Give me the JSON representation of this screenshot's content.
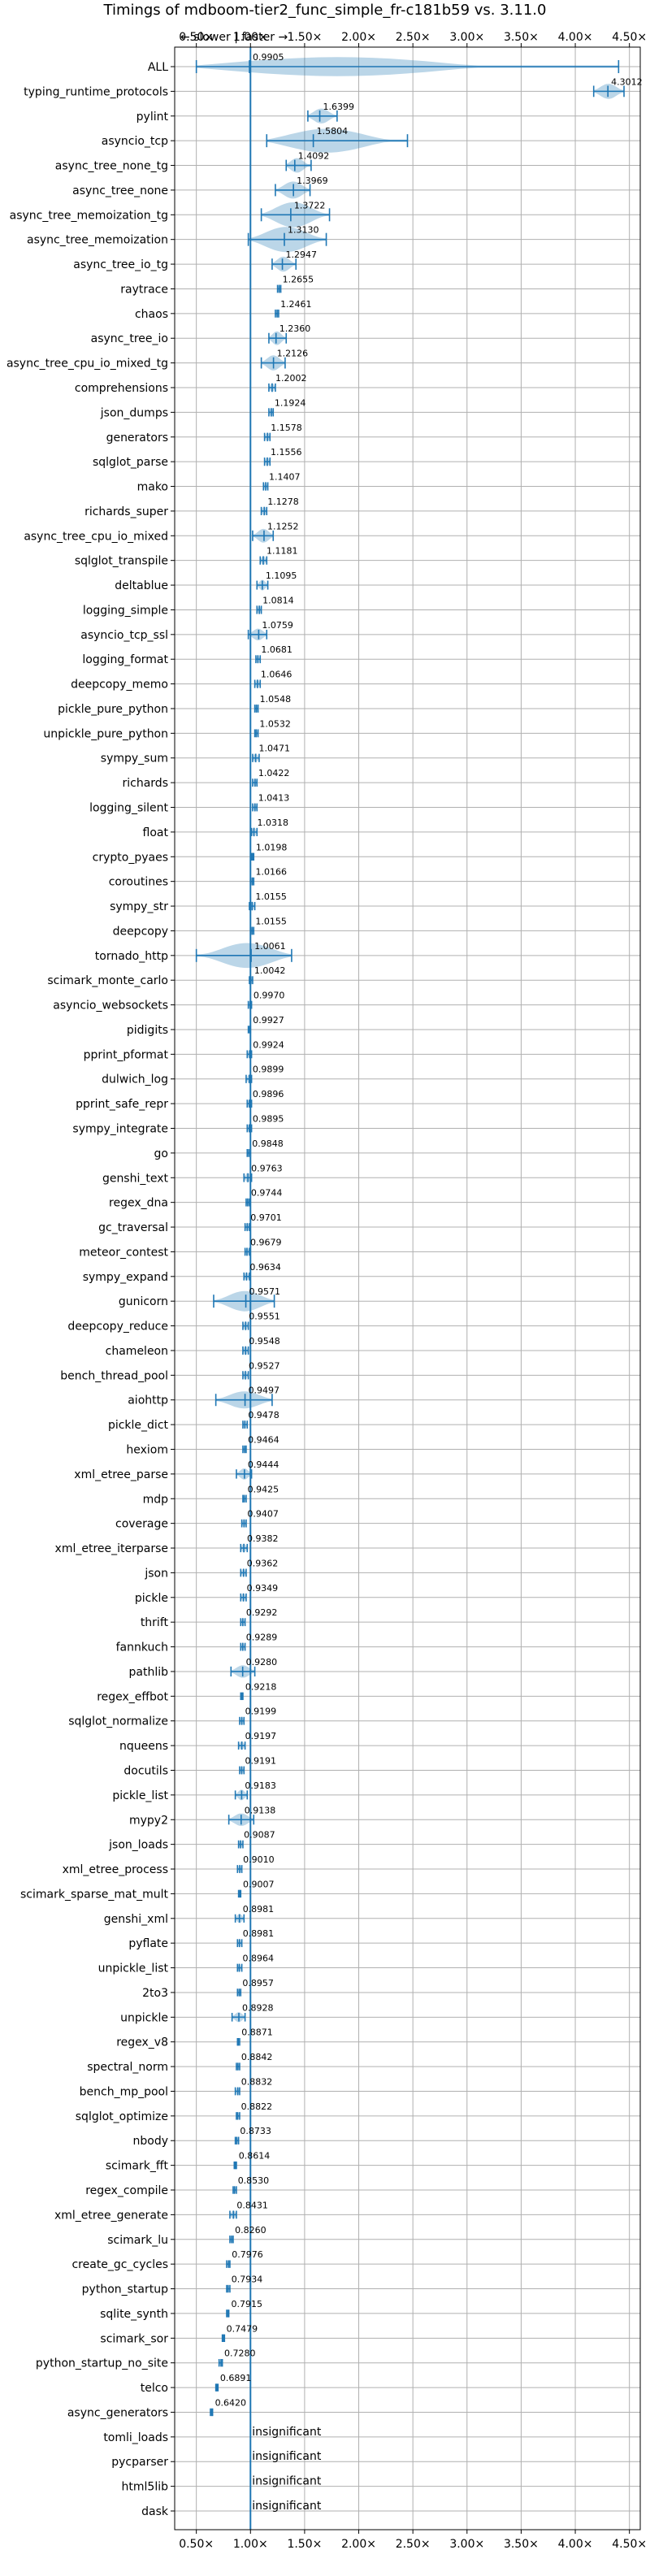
{
  "chart_data": {
    "type": "violin",
    "title": "Timings of mdboom-tier2_func_simple_fr-c181b59 vs. 3.11.0",
    "xlim": [
      0.3,
      4.6
    ],
    "xticks": [
      0.5,
      1.0,
      1.5,
      2.0,
      2.5,
      3.0,
      3.5,
      4.0,
      4.5
    ],
    "xtick_labels": [
      "0.50×",
      "1.00×",
      "1.50×",
      "2.00×",
      "2.50×",
      "3.00×",
      "3.50×",
      "4.00×",
      "4.50×"
    ],
    "reference_line": 1.0,
    "direction_note": "← slower | faster →",
    "grid": true,
    "benchmarks": [
      {
        "name": "ALL",
        "value": 0.9905,
        "value_label": "0.9905",
        "low": 0.5,
        "high": 4.4,
        "spread": 0.35
      },
      {
        "name": "typing_runtime_protocols",
        "value": 4.3012,
        "value_label": "4.3012",
        "low": 4.17,
        "high": 4.45,
        "spread": 0.12
      },
      {
        "name": "pylint",
        "value": 1.6399,
        "value_label": "1.6399",
        "low": 1.53,
        "high": 1.8,
        "spread": 0.12
      },
      {
        "name": "asyncio_tcp",
        "value": 1.5804,
        "value_label": "1.5804",
        "low": 1.15,
        "high": 2.45,
        "spread": 0.35
      },
      {
        "name": "async_tree_none_tg",
        "value": 1.4092,
        "value_label": "1.4092",
        "low": 1.33,
        "high": 1.56,
        "spread": 0.12
      },
      {
        "name": "async_tree_none",
        "value": 1.3969,
        "value_label": "1.3969",
        "low": 1.23,
        "high": 1.55,
        "spread": 0.15
      },
      {
        "name": "async_tree_memoization_tg",
        "value": 1.3722,
        "value_label": "1.3722",
        "low": 1.1,
        "high": 1.73,
        "spread": 0.28
      },
      {
        "name": "async_tree_memoization",
        "value": 1.313,
        "value_label": "1.3130",
        "low": 0.98,
        "high": 1.7,
        "spread": 0.3
      },
      {
        "name": "async_tree_io_tg",
        "value": 1.2947,
        "value_label": "1.2947",
        "low": 1.2,
        "high": 1.42,
        "spread": 0.12
      },
      {
        "name": "raytrace",
        "value": 1.2655,
        "value_label": "1.2655",
        "low": 1.25,
        "high": 1.28,
        "spread": 0.02
      },
      {
        "name": "chaos",
        "value": 1.2461,
        "value_label": "1.2461",
        "low": 1.23,
        "high": 1.26,
        "spread": 0.02
      },
      {
        "name": "async_tree_io",
        "value": 1.236,
        "value_label": "1.2360",
        "low": 1.17,
        "high": 1.33,
        "spread": 0.1
      },
      {
        "name": "async_tree_cpu_io_mixed_tg",
        "value": 1.2126,
        "value_label": "1.2126",
        "low": 1.1,
        "high": 1.32,
        "spread": 0.12
      },
      {
        "name": "comprehensions",
        "value": 1.2002,
        "value_label": "1.2002",
        "low": 1.17,
        "high": 1.23,
        "spread": 0.03
      },
      {
        "name": "json_dumps",
        "value": 1.1924,
        "value_label": "1.1924",
        "low": 1.17,
        "high": 1.21,
        "spread": 0.03
      },
      {
        "name": "generators",
        "value": 1.1578,
        "value_label": "1.1578",
        "low": 1.13,
        "high": 1.18,
        "spread": 0.03
      },
      {
        "name": "sqlglot_parse",
        "value": 1.1556,
        "value_label": "1.1556",
        "low": 1.13,
        "high": 1.18,
        "spread": 0.03
      },
      {
        "name": "mako",
        "value": 1.1407,
        "value_label": "1.1407",
        "low": 1.12,
        "high": 1.16,
        "spread": 0.03
      },
      {
        "name": "richards_super",
        "value": 1.1278,
        "value_label": "1.1278",
        "low": 1.1,
        "high": 1.15,
        "spread": 0.03
      },
      {
        "name": "async_tree_cpu_io_mixed",
        "value": 1.1252,
        "value_label": "1.1252",
        "low": 1.02,
        "high": 1.21,
        "spread": 0.1
      },
      {
        "name": "sqlglot_transpile",
        "value": 1.1181,
        "value_label": "1.1181",
        "low": 1.09,
        "high": 1.15,
        "spread": 0.03
      },
      {
        "name": "deltablue",
        "value": 1.1095,
        "value_label": "1.1095",
        "low": 1.06,
        "high": 1.16,
        "spread": 0.05
      },
      {
        "name": "logging_simple",
        "value": 1.0814,
        "value_label": "1.0814",
        "low": 1.06,
        "high": 1.1,
        "spread": 0.03
      },
      {
        "name": "asyncio_tcp_ssl",
        "value": 1.0759,
        "value_label": "1.0759",
        "low": 0.98,
        "high": 1.15,
        "spread": 0.07
      },
      {
        "name": "logging_format",
        "value": 1.0681,
        "value_label": "1.0681",
        "low": 1.05,
        "high": 1.09,
        "spread": 0.02
      },
      {
        "name": "deepcopy_memo",
        "value": 1.0646,
        "value_label": "1.0646",
        "low": 1.04,
        "high": 1.09,
        "spread": 0.03
      },
      {
        "name": "pickle_pure_python",
        "value": 1.0548,
        "value_label": "1.0548",
        "low": 1.04,
        "high": 1.07,
        "spread": 0.02
      },
      {
        "name": "unpickle_pure_python",
        "value": 1.0532,
        "value_label": "1.0532",
        "low": 1.04,
        "high": 1.07,
        "spread": 0.02
      },
      {
        "name": "sympy_sum",
        "value": 1.0471,
        "value_label": "1.0471",
        "low": 1.02,
        "high": 1.08,
        "spread": 0.03
      },
      {
        "name": "richards",
        "value": 1.0422,
        "value_label": "1.0422",
        "low": 1.02,
        "high": 1.06,
        "spread": 0.02
      },
      {
        "name": "logging_silent",
        "value": 1.0413,
        "value_label": "1.0413",
        "low": 1.02,
        "high": 1.06,
        "spread": 0.02
      },
      {
        "name": "float",
        "value": 1.0318,
        "value_label": "1.0318",
        "low": 1.01,
        "high": 1.06,
        "spread": 0.03
      },
      {
        "name": "crypto_pyaes",
        "value": 1.0198,
        "value_label": "1.0198",
        "low": 1.01,
        "high": 1.03,
        "spread": 0.01
      },
      {
        "name": "coroutines",
        "value": 1.0166,
        "value_label": "1.0166",
        "low": 1.0,
        "high": 1.03,
        "spread": 0.02
      },
      {
        "name": "sympy_str",
        "value": 1.0155,
        "value_label": "1.0155",
        "low": 0.99,
        "high": 1.04,
        "spread": 0.03
      },
      {
        "name": "deepcopy",
        "value": 1.0155,
        "value_label": "1.0155",
        "low": 1.0,
        "high": 1.03,
        "spread": 0.02
      },
      {
        "name": "tornado_http",
        "value": 1.0061,
        "value_label": "1.0061",
        "low": 0.5,
        "high": 1.38,
        "spread": 0.4
      },
      {
        "name": "scimark_monte_carlo",
        "value": 1.0042,
        "value_label": "1.0042",
        "low": 0.99,
        "high": 1.02,
        "spread": 0.02
      },
      {
        "name": "asyncio_websockets",
        "value": 0.997,
        "value_label": "0.9970",
        "low": 0.98,
        "high": 1.01,
        "spread": 0.02
      },
      {
        "name": "pidigits",
        "value": 0.9927,
        "value_label": "0.9927",
        "low": 0.98,
        "high": 1.0,
        "spread": 0.01
      },
      {
        "name": "pprint_pformat",
        "value": 0.9924,
        "value_label": "0.9924",
        "low": 0.97,
        "high": 1.01,
        "spread": 0.02
      },
      {
        "name": "dulwich_log",
        "value": 0.9899,
        "value_label": "0.9899",
        "low": 0.96,
        "high": 1.01,
        "spread": 0.03
      },
      {
        "name": "pprint_safe_repr",
        "value": 0.9896,
        "value_label": "0.9896",
        "low": 0.97,
        "high": 1.01,
        "spread": 0.02
      },
      {
        "name": "sympy_integrate",
        "value": 0.9895,
        "value_label": "0.9895",
        "low": 0.97,
        "high": 1.01,
        "spread": 0.02
      },
      {
        "name": "go",
        "value": 0.9848,
        "value_label": "0.9848",
        "low": 0.97,
        "high": 1.0,
        "spread": 0.02
      },
      {
        "name": "genshi_text",
        "value": 0.9763,
        "value_label": "0.9763",
        "low": 0.94,
        "high": 1.01,
        "spread": 0.04
      },
      {
        "name": "regex_dna",
        "value": 0.9744,
        "value_label": "0.9744",
        "low": 0.96,
        "high": 0.99,
        "spread": 0.02
      },
      {
        "name": "gc_traversal",
        "value": 0.9701,
        "value_label": "0.9701",
        "low": 0.95,
        "high": 0.99,
        "spread": 0.02
      },
      {
        "name": "meteor_contest",
        "value": 0.9679,
        "value_label": "0.9679",
        "low": 0.95,
        "high": 0.99,
        "spread": 0.02
      },
      {
        "name": "sympy_expand",
        "value": 0.9634,
        "value_label": "0.9634",
        "low": 0.94,
        "high": 0.99,
        "spread": 0.02
      },
      {
        "name": "gunicorn",
        "value": 0.9571,
        "value_label": "0.9571",
        "low": 0.66,
        "high": 1.22,
        "spread": 0.2
      },
      {
        "name": "deepcopy_reduce",
        "value": 0.9551,
        "value_label": "0.9551",
        "low": 0.93,
        "high": 0.98,
        "spread": 0.03
      },
      {
        "name": "chameleon",
        "value": 0.9548,
        "value_label": "0.9548",
        "low": 0.93,
        "high": 0.98,
        "spread": 0.03
      },
      {
        "name": "bench_thread_pool",
        "value": 0.9527,
        "value_label": "0.9527",
        "low": 0.93,
        "high": 0.98,
        "spread": 0.03
      },
      {
        "name": "aiohttp",
        "value": 0.9497,
        "value_label": "0.9497",
        "low": 0.68,
        "high": 1.2,
        "spread": 0.15
      },
      {
        "name": "pickle_dict",
        "value": 0.9478,
        "value_label": "0.9478",
        "low": 0.93,
        "high": 0.97,
        "spread": 0.02
      },
      {
        "name": "hexiom",
        "value": 0.9464,
        "value_label": "0.9464",
        "low": 0.93,
        "high": 0.96,
        "spread": 0.01
      },
      {
        "name": "xml_etree_parse",
        "value": 0.9444,
        "value_label": "0.9444",
        "low": 0.87,
        "high": 1.01,
        "spread": 0.06
      },
      {
        "name": "mdp",
        "value": 0.9425,
        "value_label": "0.9425",
        "low": 0.93,
        "high": 0.96,
        "spread": 0.01
      },
      {
        "name": "coverage",
        "value": 0.9407,
        "value_label": "0.9407",
        "low": 0.92,
        "high": 0.96,
        "spread": 0.02
      },
      {
        "name": "xml_etree_iterparse",
        "value": 0.9382,
        "value_label": "0.9382",
        "low": 0.91,
        "high": 0.97,
        "spread": 0.03
      },
      {
        "name": "json",
        "value": 0.9362,
        "value_label": "0.9362",
        "low": 0.91,
        "high": 0.96,
        "spread": 0.02
      },
      {
        "name": "pickle",
        "value": 0.9349,
        "value_label": "0.9349",
        "low": 0.91,
        "high": 0.96,
        "spread": 0.02
      },
      {
        "name": "thrift",
        "value": 0.9292,
        "value_label": "0.9292",
        "low": 0.91,
        "high": 0.95,
        "spread": 0.02
      },
      {
        "name": "fannkuch",
        "value": 0.9289,
        "value_label": "0.9289",
        "low": 0.91,
        "high": 0.95,
        "spread": 0.02
      },
      {
        "name": "pathlib",
        "value": 0.928,
        "value_label": "0.9280",
        "low": 0.82,
        "high": 1.04,
        "spread": 0.08
      },
      {
        "name": "regex_effbot",
        "value": 0.9218,
        "value_label": "0.9218",
        "low": 0.91,
        "high": 0.93,
        "spread": 0.01
      },
      {
        "name": "sqlglot_normalize",
        "value": 0.9199,
        "value_label": "0.9199",
        "low": 0.9,
        "high": 0.94,
        "spread": 0.02
      },
      {
        "name": "nqueens",
        "value": 0.9197,
        "value_label": "0.9197",
        "low": 0.89,
        "high": 0.95,
        "spread": 0.02
      },
      {
        "name": "docutils",
        "value": 0.9191,
        "value_label": "0.9191",
        "low": 0.9,
        "high": 0.94,
        "spread": 0.02
      },
      {
        "name": "pickle_list",
        "value": 0.9183,
        "value_label": "0.9183",
        "low": 0.86,
        "high": 0.97,
        "spread": 0.05
      },
      {
        "name": "mypy2",
        "value": 0.9138,
        "value_label": "0.9138",
        "low": 0.8,
        "high": 1.03,
        "spread": 0.08
      },
      {
        "name": "json_loads",
        "value": 0.9087,
        "value_label": "0.9087",
        "low": 0.89,
        "high": 0.93,
        "spread": 0.02
      },
      {
        "name": "xml_etree_process",
        "value": 0.901,
        "value_label": "0.9010",
        "low": 0.88,
        "high": 0.92,
        "spread": 0.02
      },
      {
        "name": "scimark_sparse_mat_mult",
        "value": 0.9007,
        "value_label": "0.9007",
        "low": 0.89,
        "high": 0.91,
        "spread": 0.01
      },
      {
        "name": "genshi_xml",
        "value": 0.8981,
        "value_label": "0.8981",
        "low": 0.86,
        "high": 0.94,
        "spread": 0.03
      },
      {
        "name": "pyflate",
        "value": 0.8981,
        "value_label": "0.8981",
        "low": 0.88,
        "high": 0.92,
        "spread": 0.02
      },
      {
        "name": "unpickle_list",
        "value": 0.8964,
        "value_label": "0.8964",
        "low": 0.88,
        "high": 0.92,
        "spread": 0.02
      },
      {
        "name": "2to3",
        "value": 0.8957,
        "value_label": "0.8957",
        "low": 0.88,
        "high": 0.91,
        "spread": 0.01
      },
      {
        "name": "unpickle",
        "value": 0.8928,
        "value_label": "0.8928",
        "low": 0.83,
        "high": 0.95,
        "spread": 0.04
      },
      {
        "name": "regex_v8",
        "value": 0.8871,
        "value_label": "0.8871",
        "low": 0.88,
        "high": 0.9,
        "spread": 0.01
      },
      {
        "name": "spectral_norm",
        "value": 0.8842,
        "value_label": "0.8842",
        "low": 0.87,
        "high": 0.9,
        "spread": 0.01
      },
      {
        "name": "bench_mp_pool",
        "value": 0.8832,
        "value_label": "0.8832",
        "low": 0.86,
        "high": 0.9,
        "spread": 0.02
      },
      {
        "name": "sqlglot_optimize",
        "value": 0.8822,
        "value_label": "0.8822",
        "low": 0.87,
        "high": 0.9,
        "spread": 0.01
      },
      {
        "name": "nbody",
        "value": 0.8733,
        "value_label": "0.8733",
        "low": 0.86,
        "high": 0.89,
        "spread": 0.01
      },
      {
        "name": "scimark_fft",
        "value": 0.8614,
        "value_label": "0.8614",
        "low": 0.85,
        "high": 0.87,
        "spread": 0.01
      },
      {
        "name": "regex_compile",
        "value": 0.853,
        "value_label": "0.8530",
        "low": 0.84,
        "high": 0.87,
        "spread": 0.01
      },
      {
        "name": "xml_etree_generate",
        "value": 0.8431,
        "value_label": "0.8431",
        "low": 0.81,
        "high": 0.87,
        "spread": 0.02
      },
      {
        "name": "scimark_lu",
        "value": 0.826,
        "value_label": "0.8260",
        "low": 0.81,
        "high": 0.84,
        "spread": 0.01
      },
      {
        "name": "create_gc_cycles",
        "value": 0.7976,
        "value_label": "0.7976",
        "low": 0.78,
        "high": 0.81,
        "spread": 0.01
      },
      {
        "name": "python_startup",
        "value": 0.7934,
        "value_label": "0.7934",
        "low": 0.78,
        "high": 0.81,
        "spread": 0.01
      },
      {
        "name": "sqlite_synth",
        "value": 0.7915,
        "value_label": "0.7915",
        "low": 0.78,
        "high": 0.8,
        "spread": 0.01
      },
      {
        "name": "scimark_sor",
        "value": 0.7479,
        "value_label": "0.7479",
        "low": 0.74,
        "high": 0.76,
        "spread": 0.01
      },
      {
        "name": "python_startup_no_site",
        "value": 0.728,
        "value_label": "0.7280",
        "low": 0.71,
        "high": 0.74,
        "spread": 0.01
      },
      {
        "name": "telco",
        "value": 0.6891,
        "value_label": "0.6891",
        "low": 0.68,
        "high": 0.7,
        "spread": 0.01
      },
      {
        "name": "async_generators",
        "value": 0.642,
        "value_label": "0.6420",
        "low": 0.63,
        "high": 0.65,
        "spread": 0.01
      },
      {
        "name": "tomli_loads",
        "insignificant": true,
        "value_label": "insignificant"
      },
      {
        "name": "pycparser",
        "insignificant": true,
        "value_label": "insignificant"
      },
      {
        "name": "html5lib",
        "insignificant": true,
        "value_label": "insignificant"
      },
      {
        "name": "dask",
        "insignificant": true,
        "value_label": "insignificant"
      }
    ]
  },
  "colors": {
    "primary": "#1f77b4",
    "grid": "#b0b0b0",
    "text": "#000000"
  }
}
